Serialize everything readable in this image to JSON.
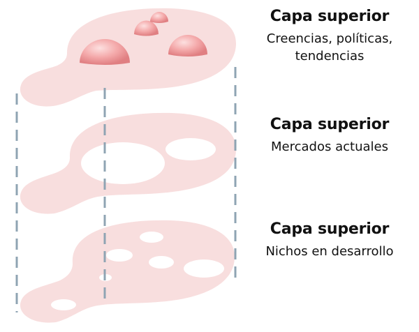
{
  "layers": [
    {
      "title": "Capa superior",
      "description": "Creencias, políticas,\ntendencias",
      "shape": "blob-with-domes"
    },
    {
      "title": "Capa superior",
      "description": "Mercados actuales",
      "shape": "blob-with-large-holes"
    },
    {
      "title": "Capa superior",
      "description": "Nichos en desarrollo",
      "shape": "blob-with-small-holes"
    }
  ],
  "colors": {
    "layer_fill": "#f8dede",
    "dome": "#f4a9aa",
    "dome_highlight": "#fcdcdc",
    "dome_shadow": "#e07f82",
    "hole": "#ffffff",
    "guide_line": "#8fa4b3",
    "text": "#111111"
  }
}
